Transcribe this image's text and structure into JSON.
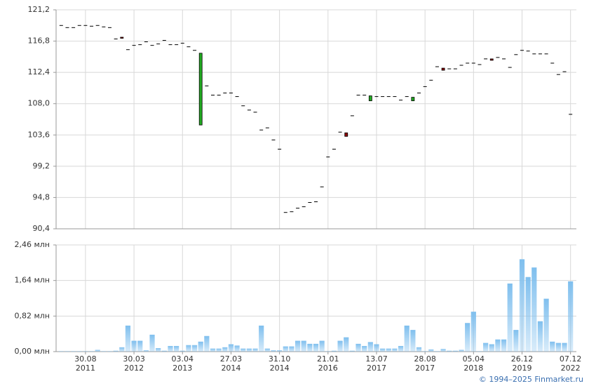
{
  "chart_data": [
    {
      "type": "candlestick",
      "open": [
        119.0,
        118.7,
        118.7,
        119.0,
        119.0,
        118.9,
        119.0,
        118.8,
        118.7,
        117.1,
        117.35,
        115.6,
        116.2,
        116.3,
        116.7,
        116.2,
        116.4,
        116.9,
        116.3,
        116.3,
        116.5,
        116.0,
        115.5,
        105.0,
        110.5,
        109.2,
        109.2,
        109.5,
        109.5,
        109.0,
        107.7,
        107.1,
        106.8,
        104.3,
        104.6,
        102.9,
        101.6,
        92.7,
        92.8,
        93.3,
        93.5,
        94.1,
        94.2,
        96.3,
        100.5,
        101.6,
        104.0,
        103.9,
        106.3,
        109.2,
        109.2,
        108.4,
        109.0,
        109.0,
        109.0,
        109.0,
        108.5,
        109.0,
        108.4,
        109.5,
        110.4,
        111.3,
        113.2,
        113.0,
        112.9,
        112.9,
        113.4,
        113.7,
        113.7,
        113.5,
        114.3,
        114.3,
        114.5,
        114.3,
        113.1,
        114.9,
        115.5,
        115.4,
        115.0,
        115.0,
        115.0,
        113.7,
        112.1,
        112.5,
        106.5
      ],
      "close": [
        119.0,
        118.7,
        118.7,
        119.0,
        119.0,
        118.9,
        119.0,
        118.8,
        118.7,
        117.1,
        117.2,
        115.6,
        116.2,
        116.3,
        116.7,
        116.2,
        116.4,
        116.9,
        116.3,
        116.3,
        116.5,
        116.0,
        115.5,
        115.1,
        110.5,
        109.2,
        109.2,
        109.5,
        109.5,
        109.0,
        107.7,
        107.1,
        106.8,
        104.3,
        104.6,
        102.9,
        101.6,
        92.7,
        92.8,
        93.3,
        93.5,
        94.1,
        94.2,
        96.3,
        100.5,
        101.6,
        104.0,
        103.4,
        106.3,
        109.2,
        109.2,
        109.1,
        109.0,
        109.0,
        109.0,
        109.0,
        108.5,
        109.0,
        108.9,
        109.5,
        110.4,
        111.3,
        113.2,
        112.7,
        112.9,
        112.9,
        113.4,
        113.7,
        113.7,
        113.5,
        114.3,
        114.1,
        114.5,
        114.3,
        113.1,
        114.9,
        115.5,
        115.4,
        115.0,
        115.0,
        115.0,
        113.7,
        112.1,
        112.5,
        106.5
      ],
      "up_color": "#22aa22",
      "down_color": "#8b0000",
      "flat_color": "#000000",
      "ylim": [
        90.4,
        121.2
      ],
      "yticks": [
        {
          "value": 90.4,
          "label": "90,4"
        },
        {
          "value": 94.8,
          "label": "94,8"
        },
        {
          "value": 99.2,
          "label": "99,2"
        },
        {
          "value": 103.6,
          "label": "103,6"
        },
        {
          "value": 108,
          "label": "108,0"
        },
        {
          "value": 112.4,
          "label": "112,4"
        },
        {
          "value": 116.8,
          "label": "116,8"
        },
        {
          "value": 121.2,
          "label": "121,2"
        }
      ],
      "grid": true
    },
    {
      "type": "bar",
      "categories": [
        null,
        null,
        null,
        null,
        [
          "30.08",
          "2011"
        ],
        null,
        null,
        null,
        null,
        null,
        null,
        null,
        [
          "30.03",
          "2012"
        ],
        null,
        null,
        null,
        null,
        null,
        null,
        null,
        [
          "03.04",
          "2013"
        ],
        null,
        null,
        null,
        null,
        null,
        null,
        null,
        [
          "27.03",
          "2014"
        ],
        null,
        null,
        null,
        null,
        null,
        null,
        null,
        [
          "31.10",
          "2014"
        ],
        null,
        null,
        null,
        null,
        null,
        null,
        null,
        [
          "21.01",
          "2016"
        ],
        null,
        null,
        null,
        null,
        null,
        null,
        null,
        [
          "13.07",
          "2017"
        ],
        null,
        null,
        null,
        null,
        null,
        null,
        null,
        [
          "28.08",
          "2017"
        ],
        null,
        null,
        null,
        null,
        null,
        null,
        null,
        [
          "05.04",
          "2018"
        ],
        null,
        null,
        null,
        null,
        null,
        null,
        null,
        [
          "26.12",
          "2019"
        ],
        null,
        null,
        null,
        null,
        null,
        null,
        null,
        [
          "07.12",
          "2022"
        ]
      ],
      "values": [
        0.01,
        0.01,
        0.01,
        0.01,
        0.01,
        0.01,
        0.04,
        0.01,
        0.01,
        0.02,
        0.1,
        0.6,
        0.25,
        0.25,
        0.03,
        0.39,
        0.08,
        0.02,
        0.13,
        0.13,
        0.02,
        0.15,
        0.15,
        0.23,
        0.36,
        0.07,
        0.07,
        0.1,
        0.17,
        0.14,
        0.07,
        0.07,
        0.07,
        0.6,
        0.07,
        0.03,
        0.03,
        0.12,
        0.12,
        0.25,
        0.25,
        0.18,
        0.18,
        0.25,
        0.01,
        0.02,
        0.25,
        0.33,
        0.02,
        0.18,
        0.13,
        0.22,
        0.17,
        0.07,
        0.07,
        0.07,
        0.13,
        0.6,
        0.5,
        0.1,
        0.01,
        0.05,
        0.01,
        0.06,
        0.02,
        0.02,
        0.04,
        0.66,
        0.92,
        0.01,
        0.2,
        0.17,
        0.28,
        0.28,
        1.57,
        0.5,
        2.13,
        1.72,
        1.94,
        0.7,
        1.22,
        0.23,
        0.2,
        0.2,
        1.62
      ],
      "color": "#7fbfee",
      "ylim": [
        0,
        2.46
      ],
      "yticks": [
        {
          "value": 0,
          "label": "0,00 млн"
        },
        {
          "value": 0.82,
          "label": "0,82 млн"
        },
        {
          "value": 1.64,
          "label": "1,64 млн"
        },
        {
          "value": 2.46,
          "label": "2,46 млн"
        }
      ],
      "grid": true,
      "credit": "© 1994–2025 Finmarket.ru"
    }
  ]
}
